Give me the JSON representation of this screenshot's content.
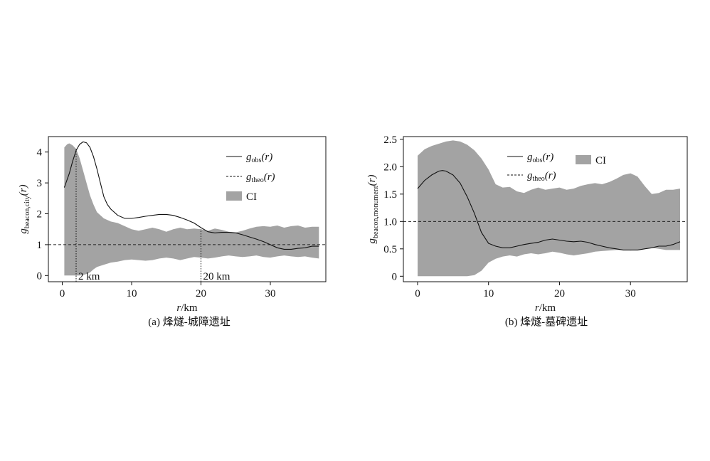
{
  "chart_data": [
    {
      "type": "line",
      "caption": "(a) 烽燧-城障遗址",
      "xlabel_var": "r",
      "xlabel_unit": "/km",
      "ylabel_var": "g",
      "ylabel_sub": "beacon,city",
      "ylabel_arg": "(r)",
      "xlim": [
        -2,
        38
      ],
      "ylim": [
        -0.2,
        4.5
      ],
      "xticks": [
        0,
        10,
        20,
        30
      ],
      "yticks": [
        0,
        1,
        2,
        3,
        4
      ],
      "legend": [
        {
          "kind": "solid",
          "var": "g",
          "sub": "obs",
          "arg": "(r)"
        },
        {
          "kind": "dashed",
          "var": "g",
          "sub": "theo",
          "arg": "(r)"
        },
        {
          "kind": "fill",
          "label": "CI"
        }
      ],
      "theo": 1,
      "annotations": [
        {
          "x": 2,
          "y": 4.1,
          "label": "2 km"
        },
        {
          "x": 20,
          "y": 1.5,
          "label": "20 km"
        }
      ],
      "ci": {
        "x": [
          0.3,
          0.7,
          1,
          1.5,
          2,
          2.5,
          3,
          3.5,
          4,
          4.5,
          5,
          6,
          7,
          8,
          9,
          10,
          11,
          12,
          13,
          14,
          15,
          16,
          17,
          18,
          19,
          20,
          21,
          22,
          23,
          24,
          25,
          26,
          27,
          28,
          29,
          30,
          31,
          32,
          33,
          34,
          35,
          36,
          37
        ],
        "upper": [
          4.15,
          4.25,
          4.28,
          4.22,
          4.1,
          3.8,
          3.4,
          3.0,
          2.6,
          2.3,
          2.05,
          1.85,
          1.75,
          1.7,
          1.6,
          1.5,
          1.45,
          1.5,
          1.55,
          1.5,
          1.42,
          1.5,
          1.55,
          1.5,
          1.52,
          1.5,
          1.45,
          1.52,
          1.48,
          1.42,
          1.4,
          1.45,
          1.52,
          1.58,
          1.6,
          1.58,
          1.62,
          1.55,
          1.6,
          1.62,
          1.55,
          1.58,
          1.58
        ],
        "lower": [
          0.0,
          0.0,
          0.0,
          0.0,
          0.0,
          0.0,
          0.02,
          0.05,
          0.1,
          0.2,
          0.28,
          0.35,
          0.42,
          0.45,
          0.5,
          0.52,
          0.5,
          0.48,
          0.5,
          0.55,
          0.58,
          0.55,
          0.5,
          0.55,
          0.6,
          0.58,
          0.55,
          0.58,
          0.62,
          0.65,
          0.62,
          0.6,
          0.62,
          0.65,
          0.6,
          0.58,
          0.62,
          0.65,
          0.62,
          0.6,
          0.62,
          0.58,
          0.55
        ]
      },
      "obs": {
        "x": [
          0.3,
          1,
          1.5,
          2,
          2.5,
          3,
          3.5,
          4,
          4.5,
          5,
          5.5,
          6,
          6.5,
          7,
          8,
          9,
          10,
          11,
          12,
          13,
          14,
          15,
          16,
          17,
          18,
          19,
          20,
          21,
          22,
          23,
          24,
          25,
          26,
          27,
          28,
          29,
          30,
          31,
          32,
          33,
          34,
          35,
          36,
          37
        ],
        "y": [
          2.85,
          3.3,
          3.7,
          4.05,
          4.25,
          4.33,
          4.3,
          4.15,
          3.85,
          3.45,
          3.0,
          2.55,
          2.3,
          2.15,
          1.95,
          1.85,
          1.85,
          1.88,
          1.92,
          1.95,
          1.98,
          1.98,
          1.95,
          1.88,
          1.8,
          1.7,
          1.55,
          1.42,
          1.38,
          1.4,
          1.4,
          1.38,
          1.32,
          1.25,
          1.18,
          1.1,
          1.0,
          0.9,
          0.85,
          0.85,
          0.88,
          0.9,
          0.95,
          0.95
        ]
      }
    },
    {
      "type": "line",
      "caption": "(b) 烽燧-墓碑遗址",
      "xlabel_var": "r",
      "xlabel_unit": "/km",
      "ylabel_var": "g",
      "ylabel_sub": "beacon,monument",
      "ylabel_arg": "(r)",
      "xlim": [
        -2,
        38
      ],
      "ylim": [
        -0.1,
        2.55
      ],
      "xticks": [
        0,
        10,
        20,
        30
      ],
      "yticks": [
        0,
        0.5,
        1.0,
        1.5,
        2.0,
        2.5
      ],
      "ytick_labels": [
        "0",
        "0.5",
        "1.0",
        "1.5",
        "2.0",
        "2.5"
      ],
      "legend": [
        {
          "kind": "solid",
          "var": "g",
          "sub": "obs",
          "arg": "(r)"
        },
        {
          "kind": "dashed",
          "var": "g",
          "sub": "theo",
          "arg": "(r)"
        },
        {
          "kind": "fill",
          "label": "CI"
        }
      ],
      "theo": 1,
      "ci": {
        "x": [
          0,
          1,
          2,
          3,
          4,
          5,
          6,
          7,
          8,
          9,
          10,
          11,
          12,
          13,
          14,
          15,
          16,
          17,
          18,
          19,
          20,
          21,
          22,
          23,
          24,
          25,
          26,
          27,
          28,
          29,
          30,
          31,
          32,
          33,
          34,
          35,
          36,
          37
        ],
        "upper": [
          2.2,
          2.32,
          2.38,
          2.42,
          2.46,
          2.48,
          2.46,
          2.4,
          2.3,
          2.15,
          1.95,
          1.68,
          1.62,
          1.63,
          1.55,
          1.52,
          1.58,
          1.62,
          1.58,
          1.6,
          1.62,
          1.58,
          1.6,
          1.65,
          1.68,
          1.7,
          1.68,
          1.72,
          1.78,
          1.85,
          1.88,
          1.82,
          1.65,
          1.5,
          1.52,
          1.58,
          1.58,
          1.6
        ],
        "lower": [
          0,
          0,
          0,
          0,
          0,
          0,
          0,
          0,
          0.02,
          0.1,
          0.25,
          0.32,
          0.36,
          0.38,
          0.36,
          0.4,
          0.42,
          0.4,
          0.42,
          0.45,
          0.43,
          0.4,
          0.38,
          0.4,
          0.42,
          0.45,
          0.46,
          0.47,
          0.48,
          0.48,
          0.47,
          0.48,
          0.5,
          0.52,
          0.5,
          0.48,
          0.48,
          0.48
        ]
      },
      "obs": {
        "x": [
          0,
          1,
          2,
          3,
          3.5,
          4,
          5,
          6,
          7,
          8,
          9,
          10,
          11,
          12,
          13,
          14,
          15,
          16,
          17,
          18,
          19,
          20,
          21,
          22,
          23,
          24,
          25,
          26,
          27,
          28,
          29,
          30,
          31,
          32,
          33,
          34,
          35,
          36,
          37
        ],
        "y": [
          1.6,
          1.75,
          1.85,
          1.92,
          1.93,
          1.92,
          1.85,
          1.7,
          1.45,
          1.15,
          0.8,
          0.6,
          0.55,
          0.52,
          0.52,
          0.55,
          0.58,
          0.6,
          0.62,
          0.66,
          0.68,
          0.66,
          0.64,
          0.63,
          0.64,
          0.62,
          0.58,
          0.55,
          0.52,
          0.5,
          0.48,
          0.48,
          0.48,
          0.5,
          0.52,
          0.55,
          0.55,
          0.58,
          0.63
        ]
      }
    }
  ]
}
